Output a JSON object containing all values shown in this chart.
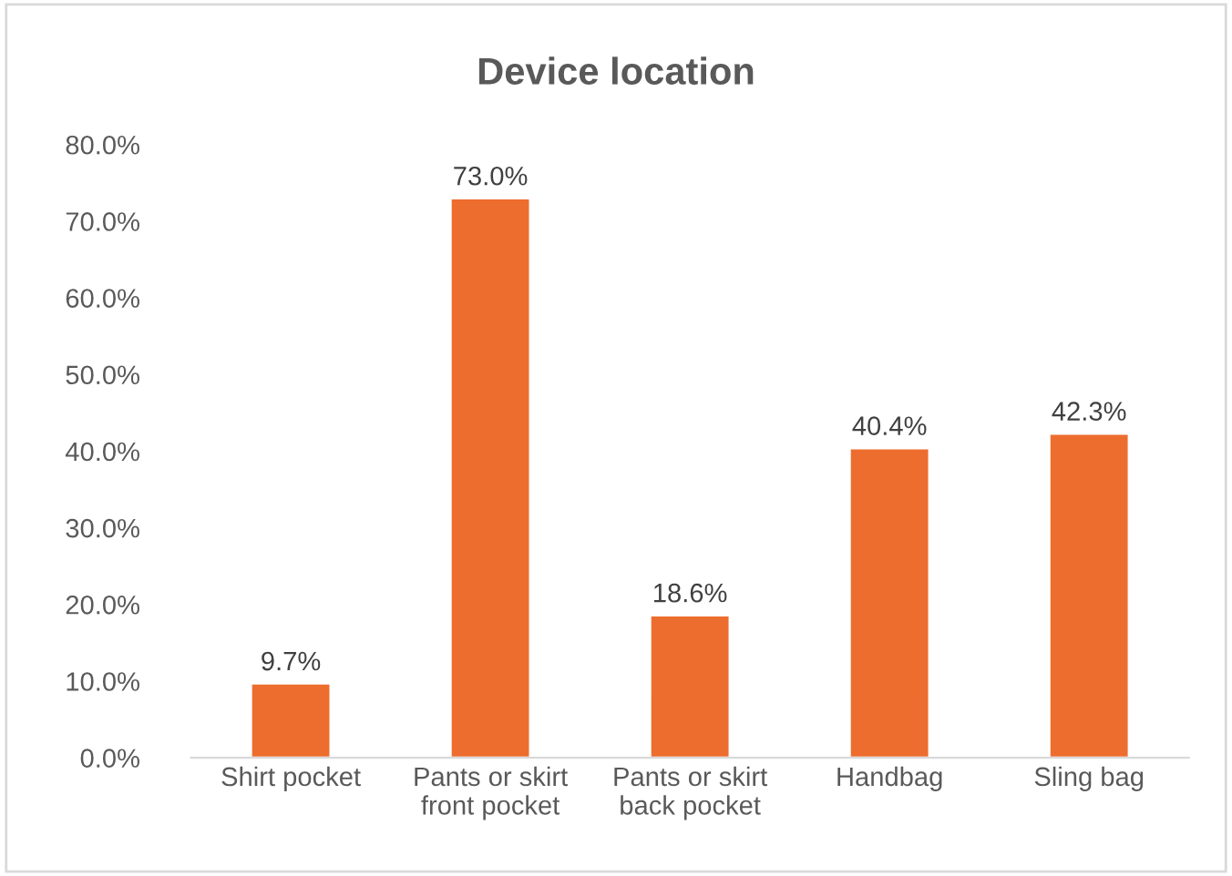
{
  "chart_data": {
    "type": "bar",
    "title": "Device location",
    "categories": [
      "Shirt pocket",
      "Pants or skirt\nfront pocket",
      "Pants or skirt\nback pocket",
      "Handbag",
      "Sling bag"
    ],
    "values": [
      9.7,
      73.0,
      18.6,
      40.4,
      42.3
    ],
    "value_labels": [
      "9.7%",
      "73.0%",
      "18.6%",
      "40.4%",
      "42.3%"
    ],
    "color": "#ed6d2e",
    "ylim": [
      0,
      80
    ],
    "yticks": [
      {
        "value": 0,
        "label": "0.0%"
      },
      {
        "value": 10,
        "label": "10.0%"
      },
      {
        "value": 20,
        "label": "20.0%"
      },
      {
        "value": 30,
        "label": "30.0%"
      },
      {
        "value": 40,
        "label": "40.0%"
      },
      {
        "value": 50,
        "label": "50.0%"
      },
      {
        "value": 60,
        "label": "60.0%"
      },
      {
        "value": 70,
        "label": "70.0%"
      },
      {
        "value": 80,
        "label": "80.0%"
      }
    ],
    "grid": false,
    "legend": false
  }
}
